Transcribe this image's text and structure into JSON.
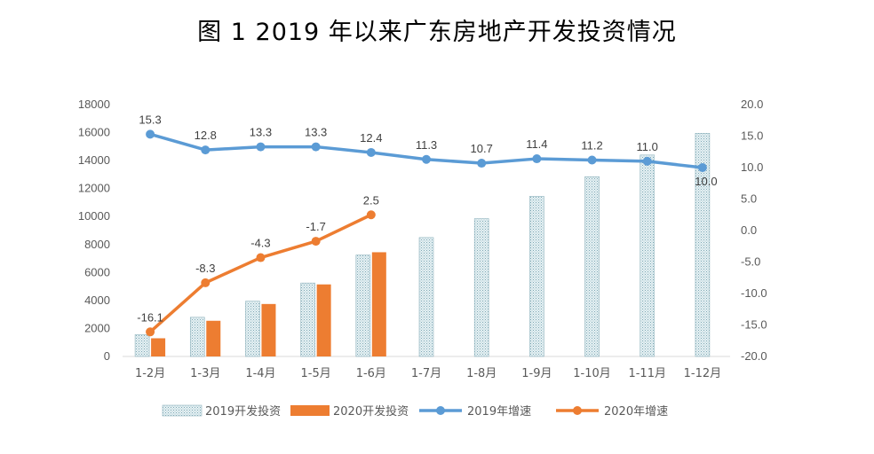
{
  "title": "图 1   2019 年以来广东房地产开发投资情况",
  "chart_data": {
    "type": "bar+line",
    "title": "图 1   2019 年以来广东房地产开发投资情况",
    "categories": [
      "1-2月",
      "1-3月",
      "1-4月",
      "1-5月",
      "1-6月",
      "1-7月",
      "1-8月",
      "1-9月",
      "1-10月",
      "1-11月",
      "1-12月"
    ],
    "y_left": {
      "min": 0,
      "max": 18000,
      "ticks": [
        "0",
        "2000",
        "4000",
        "6000",
        "8000",
        "10000",
        "12000",
        "14000",
        "16000",
        "18000"
      ]
    },
    "y_right": {
      "min": -20,
      "max": 20,
      "ticks": [
        "-20.0",
        "-15.0",
        "-10.0",
        "-5.0",
        "0.0",
        "5.0",
        "10.0",
        "15.0",
        "20.0"
      ]
    },
    "grid": false,
    "legend_position": "bottom",
    "series": [
      {
        "name": "2019开发投资",
        "type": "bar",
        "axis": "left",
        "color": "#dbe9ee",
        "values": [
          1560,
          2800,
          3950,
          5250,
          7250,
          8500,
          9850,
          11450,
          12850,
          14400,
          15950
        ]
      },
      {
        "name": "2020开发投资",
        "type": "bar",
        "axis": "left",
        "color": "#ed7d31",
        "values": [
          1300,
          2550,
          3750,
          5150,
          7450,
          null,
          null,
          null,
          null,
          null,
          null
        ]
      },
      {
        "name": "2019年增速",
        "type": "line",
        "axis": "right",
        "color": "#5b9bd5",
        "values": [
          15.3,
          12.8,
          13.3,
          13.3,
          12.4,
          11.3,
          10.7,
          11.4,
          11.2,
          11.0,
          10.0
        ],
        "labels": [
          "15.3",
          "12.8",
          "13.3",
          "13.3",
          "12.4",
          "11.3",
          "10.7",
          "11.4",
          "11.2",
          "11.0",
          "10.0"
        ]
      },
      {
        "name": "2020年增速",
        "type": "line",
        "axis": "right",
        "color": "#ed7d31",
        "values": [
          -16.1,
          -8.3,
          -4.3,
          -1.7,
          2.5,
          null,
          null,
          null,
          null,
          null,
          null
        ],
        "labels": [
          "-16.1",
          "-8.3",
          "-4.3",
          "-1.7",
          "2.5",
          null,
          null,
          null,
          null,
          null,
          null
        ]
      }
    ]
  }
}
